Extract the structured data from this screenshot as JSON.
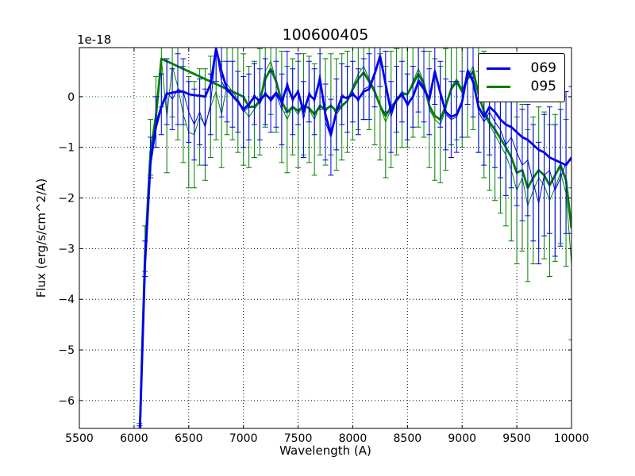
{
  "figure": {
    "background": "#ffffff"
  },
  "chart_data": {
    "type": "line",
    "title": "100600405",
    "xlabel": "Wavelength (A)",
    "ylabel": "Flux (erg/s/cm^2/A)",
    "y_offset_label": "1e-18",
    "xlim": [
      5500,
      10000
    ],
    "ylim": [
      -6.55,
      0.97
    ],
    "x_ticks": [
      5500,
      6000,
      6500,
      7000,
      7500,
      8000,
      8500,
      9000,
      9500,
      10000
    ],
    "x_tick_labels": [
      "5500",
      "6000",
      "6500",
      "7000",
      "7500",
      "8000",
      "8500",
      "9000",
      "9500",
      "10000"
    ],
    "y_ticks": [
      0,
      -1,
      -2,
      -3,
      -4,
      -5,
      -6
    ],
    "y_tick_labels": [
      "0",
      "−1",
      "−2",
      "−3",
      "−4",
      "−5",
      "−6"
    ],
    "grid": {
      "on": true,
      "style": "dotted",
      "color": "#000000"
    },
    "zero_line": {
      "y": 0,
      "color": "#007f00",
      "style": "dotted"
    },
    "legend": {
      "position": "upper right",
      "entries": [
        "069",
        "095"
      ]
    },
    "x": [
      6050,
      6100,
      6150,
      6200,
      6250,
      6300,
      6350,
      6400,
      6450,
      6500,
      6550,
      6600,
      6650,
      6700,
      6750,
      6800,
      6850,
      6900,
      6950,
      7000,
      7050,
      7100,
      7150,
      7200,
      7250,
      7300,
      7350,
      7400,
      7450,
      7500,
      7550,
      7600,
      7650,
      7700,
      7750,
      7800,
      7850,
      7900,
      7950,
      8000,
      8050,
      8100,
      8150,
      8200,
      8250,
      8300,
      8350,
      8400,
      8450,
      8500,
      8550,
      8600,
      8650,
      8700,
      8750,
      8800,
      8850,
      8900,
      8950,
      9000,
      9050,
      9100,
      9150,
      9200,
      9250,
      9300,
      9350,
      9400,
      9450,
      9500,
      9550,
      9600,
      9650,
      9700,
      9750,
      9800,
      9850,
      9900,
      9950,
      10000
    ],
    "series": [
      {
        "name": "069",
        "color": "#0000ee",
        "flux": [
          -6.8,
          -3.2,
          -1.2,
          -0.5,
          -0.15,
          0.1,
          -0.05,
          0.15,
          0.1,
          -0.3,
          -0.55,
          -0.3,
          -0.6,
          -0.15,
          0.95,
          0.3,
          0.1,
          0.05,
          -0.1,
          -0.3,
          -0.2,
          0.05,
          -0.15,
          0.1,
          -0.1,
          0.05,
          -0.25,
          0.3,
          -0.1,
          0.15,
          -0.45,
          0.1,
          -0.1,
          0.45,
          -0.5,
          -0.8,
          -0.35,
          0.05,
          -0.05,
          0.1,
          -0.1,
          0.15,
          0.2,
          0.5,
          0.85,
          0.3,
          -0.4,
          -0.05,
          0.1,
          -0.2,
          0.0,
          0.35,
          0.2,
          -0.1,
          0.55,
          0.05,
          -0.35,
          -0.45,
          -0.4,
          -0.15,
          0.55,
          0.35,
          -0.3,
          -0.5,
          -0.3,
          -0.5,
          -0.65,
          -0.95,
          -0.8,
          -1.1,
          -1.35,
          -1.25,
          -1.7,
          -2.1,
          -1.55,
          -1.45,
          -1.85,
          -1.6,
          -1.3,
          -1.25
        ],
        "err": [
          0.3,
          0.35,
          0.4,
          0.5,
          0.6,
          0.65,
          0.6,
          0.7,
          0.65,
          0.6,
          0.7,
          0.65,
          0.75,
          0.6,
          0.65,
          0.7,
          0.6,
          0.65,
          0.6,
          0.7,
          0.65,
          0.6,
          0.7,
          0.65,
          0.6,
          0.65,
          0.7,
          0.6,
          0.65,
          0.7,
          0.75,
          0.6,
          0.65,
          0.7,
          0.75,
          0.75,
          0.7,
          0.6,
          0.65,
          0.6,
          0.65,
          0.6,
          0.65,
          0.7,
          0.65,
          0.6,
          0.7,
          0.65,
          0.6,
          0.65,
          0.6,
          0.65,
          0.7,
          0.65,
          0.7,
          0.65,
          0.7,
          0.75,
          0.7,
          0.65,
          0.7,
          0.75,
          0.8,
          0.85,
          0.85,
          0.9,
          0.95,
          1.0,
          1.0,
          1.05,
          1.1,
          1.1,
          1.15,
          1.2,
          1.2,
          1.25,
          1.3,
          1.35,
          1.4,
          1.45
        ],
        "smooth": [
          -6.8,
          -3.3,
          -1.3,
          -0.6,
          -0.2,
          0.05,
          0.08,
          0.1,
          0.1,
          0.05,
          0.03,
          0.02,
          0.0,
          0.25,
          0.95,
          0.5,
          0.15,
          0.02,
          -0.1,
          -0.25,
          -0.15,
          0.0,
          -0.08,
          0.05,
          -0.05,
          0.08,
          -0.1,
          0.22,
          -0.05,
          0.1,
          -0.3,
          0.03,
          -0.05,
          0.35,
          -0.35,
          -0.75,
          -0.3,
          0.0,
          -0.03,
          0.05,
          -0.05,
          0.1,
          0.15,
          0.45,
          0.8,
          0.25,
          -0.3,
          -0.05,
          0.05,
          -0.15,
          0.0,
          0.3,
          0.15,
          -0.05,
          0.5,
          0.08,
          -0.3,
          -0.4,
          -0.35,
          -0.1,
          0.5,
          0.3,
          -0.2,
          -0.4,
          -0.2,
          -0.3,
          -0.45,
          -0.55,
          -0.6,
          -0.7,
          -0.8,
          -0.85,
          -0.95,
          -1.05,
          -1.1,
          -1.2,
          -1.25,
          -1.3,
          -1.35,
          -1.2
        ]
      },
      {
        "name": "095",
        "color": "#007f00",
        "flux": [
          -6.8,
          -3.0,
          -1.0,
          -0.3,
          0.75,
          -0.4,
          0.6,
          0.2,
          -0.35,
          -0.7,
          -0.75,
          -0.4,
          -0.55,
          -0.2,
          0.1,
          -0.35,
          0.25,
          0.1,
          -0.05,
          -0.25,
          -0.4,
          -0.25,
          -0.1,
          0.5,
          0.7,
          0.3,
          -0.2,
          -0.45,
          -0.2,
          -0.35,
          -0.15,
          -0.25,
          -0.45,
          -0.15,
          -0.3,
          -0.15,
          -0.35,
          -0.2,
          -0.1,
          0.2,
          0.45,
          0.6,
          0.35,
          0.15,
          -0.2,
          -0.5,
          -0.25,
          -0.1,
          0.1,
          0.05,
          0.3,
          0.55,
          0.3,
          -0.25,
          -0.45,
          -0.55,
          -0.25,
          0.2,
          0.35,
          0.15,
          0.4,
          0.6,
          0.1,
          -0.35,
          -0.55,
          -0.75,
          -0.95,
          -1.15,
          -1.45,
          -1.85,
          -1.6,
          -2.15,
          -1.85,
          -1.6,
          -1.75,
          -2.05,
          -1.8,
          -1.5,
          -1.9,
          -3.3
        ],
        "err": [
          0.35,
          0.45,
          0.55,
          0.7,
          0.95,
          1.1,
          1.0,
          1.05,
          0.95,
          1.1,
          1.05,
          0.95,
          1.1,
          1.0,
          0.95,
          1.05,
          1.0,
          0.95,
          1.05,
          1.1,
          1.0,
          0.95,
          1.05,
          1.1,
          1.05,
          1.0,
          1.1,
          1.05,
          0.95,
          1.05,
          1.0,
          1.05,
          1.1,
          1.0,
          1.05,
          1.0,
          1.1,
          1.05,
          1.0,
          1.05,
          1.1,
          1.05,
          1.0,
          1.1,
          1.05,
          1.1,
          1.15,
          1.05,
          1.1,
          1.05,
          1.1,
          1.15,
          1.1,
          1.15,
          1.2,
          1.15,
          1.2,
          1.15,
          1.2,
          1.15,
          1.2,
          1.25,
          1.2,
          1.25,
          1.3,
          1.3,
          1.35,
          1.4,
          1.4,
          1.45,
          1.45,
          1.5,
          1.45,
          1.4,
          1.45,
          1.5,
          1.45,
          1.4,
          1.45,
          1.5
        ],
        "smooth": [
          -6.8,
          -3.1,
          -1.1,
          -0.4,
          0.75,
          0.7,
          0.65,
          0.6,
          0.55,
          0.5,
          0.45,
          0.4,
          0.35,
          0.3,
          0.25,
          0.2,
          0.15,
          0.1,
          0.05,
          0.0,
          -0.2,
          -0.2,
          -0.08,
          0.35,
          0.55,
          0.3,
          -0.1,
          -0.3,
          -0.2,
          -0.28,
          -0.18,
          -0.22,
          -0.35,
          -0.18,
          -0.25,
          -0.18,
          -0.28,
          -0.18,
          -0.08,
          0.15,
          0.35,
          0.48,
          0.3,
          0.1,
          -0.18,
          -0.38,
          -0.2,
          -0.08,
          0.05,
          0.05,
          0.25,
          0.45,
          0.25,
          -0.18,
          -0.38,
          -0.45,
          -0.18,
          0.15,
          0.3,
          0.1,
          0.35,
          0.5,
          0.05,
          -0.3,
          -0.5,
          -0.65,
          -0.82,
          -1.0,
          -1.2,
          -1.5,
          -1.45,
          -1.8,
          -1.6,
          -1.45,
          -1.55,
          -1.75,
          -1.55,
          -1.35,
          -1.65,
          -2.6
        ]
      }
    ]
  }
}
